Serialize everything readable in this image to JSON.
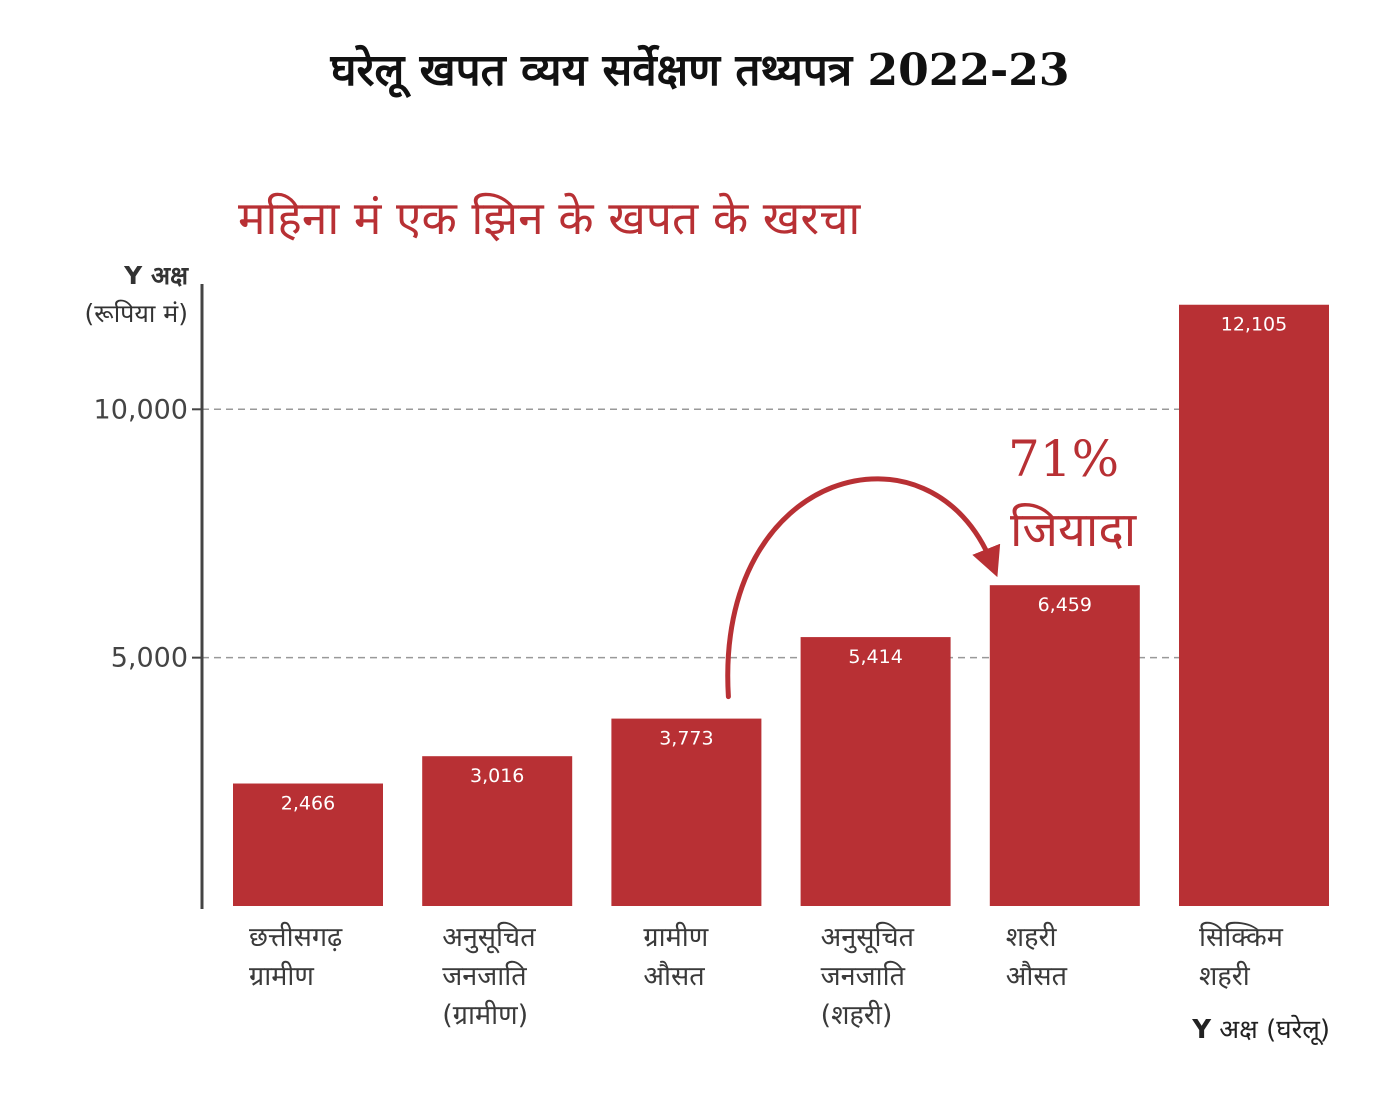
{
  "header": {
    "title": "घरेलू खपत व्यय सर्वेक्षण तथ्यपत्र 2022-23"
  },
  "chart_data": {
    "type": "bar",
    "title": "महिना मं एक झिन के खपत के खरचा",
    "ylabel_line1": "Y अक्ष",
    "ylabel_line2": "(रूपिया मं)",
    "xlabel_prefix": "Y",
    "xlabel_text": " अक्ष (घरेलू)",
    "ylim": [
      0,
      12600
    ],
    "yticks": [
      {
        "value": 10000,
        "label": "10,000"
      },
      {
        "value": 5000,
        "label": "5,000"
      }
    ],
    "grid": "dashed-horizontal",
    "categories": [
      "छत्तीसगढ़\nग्रामीण",
      "अनुसूचित\nजनजाति\n(ग्रामीण)",
      "ग्रामीण\nऔसत",
      "अनुसूचित\nजनजाति\n(शहरी)",
      "शहरी\nऔसत",
      "सिक्किम\nशहरी"
    ],
    "values": [
      2466,
      3016,
      3773,
      5414,
      6459,
      12105
    ],
    "value_labels": [
      "2,466",
      "3,016",
      "3,773",
      "5,414",
      "6,459",
      "12,105"
    ],
    "annotation": {
      "percent": "71%",
      "text": "जियादा",
      "from_index": 2,
      "to_index": 4
    },
    "colors": {
      "bar": "#b83034",
      "annotation": "#b83034",
      "axis": "#444444",
      "grid": "#999999"
    }
  }
}
